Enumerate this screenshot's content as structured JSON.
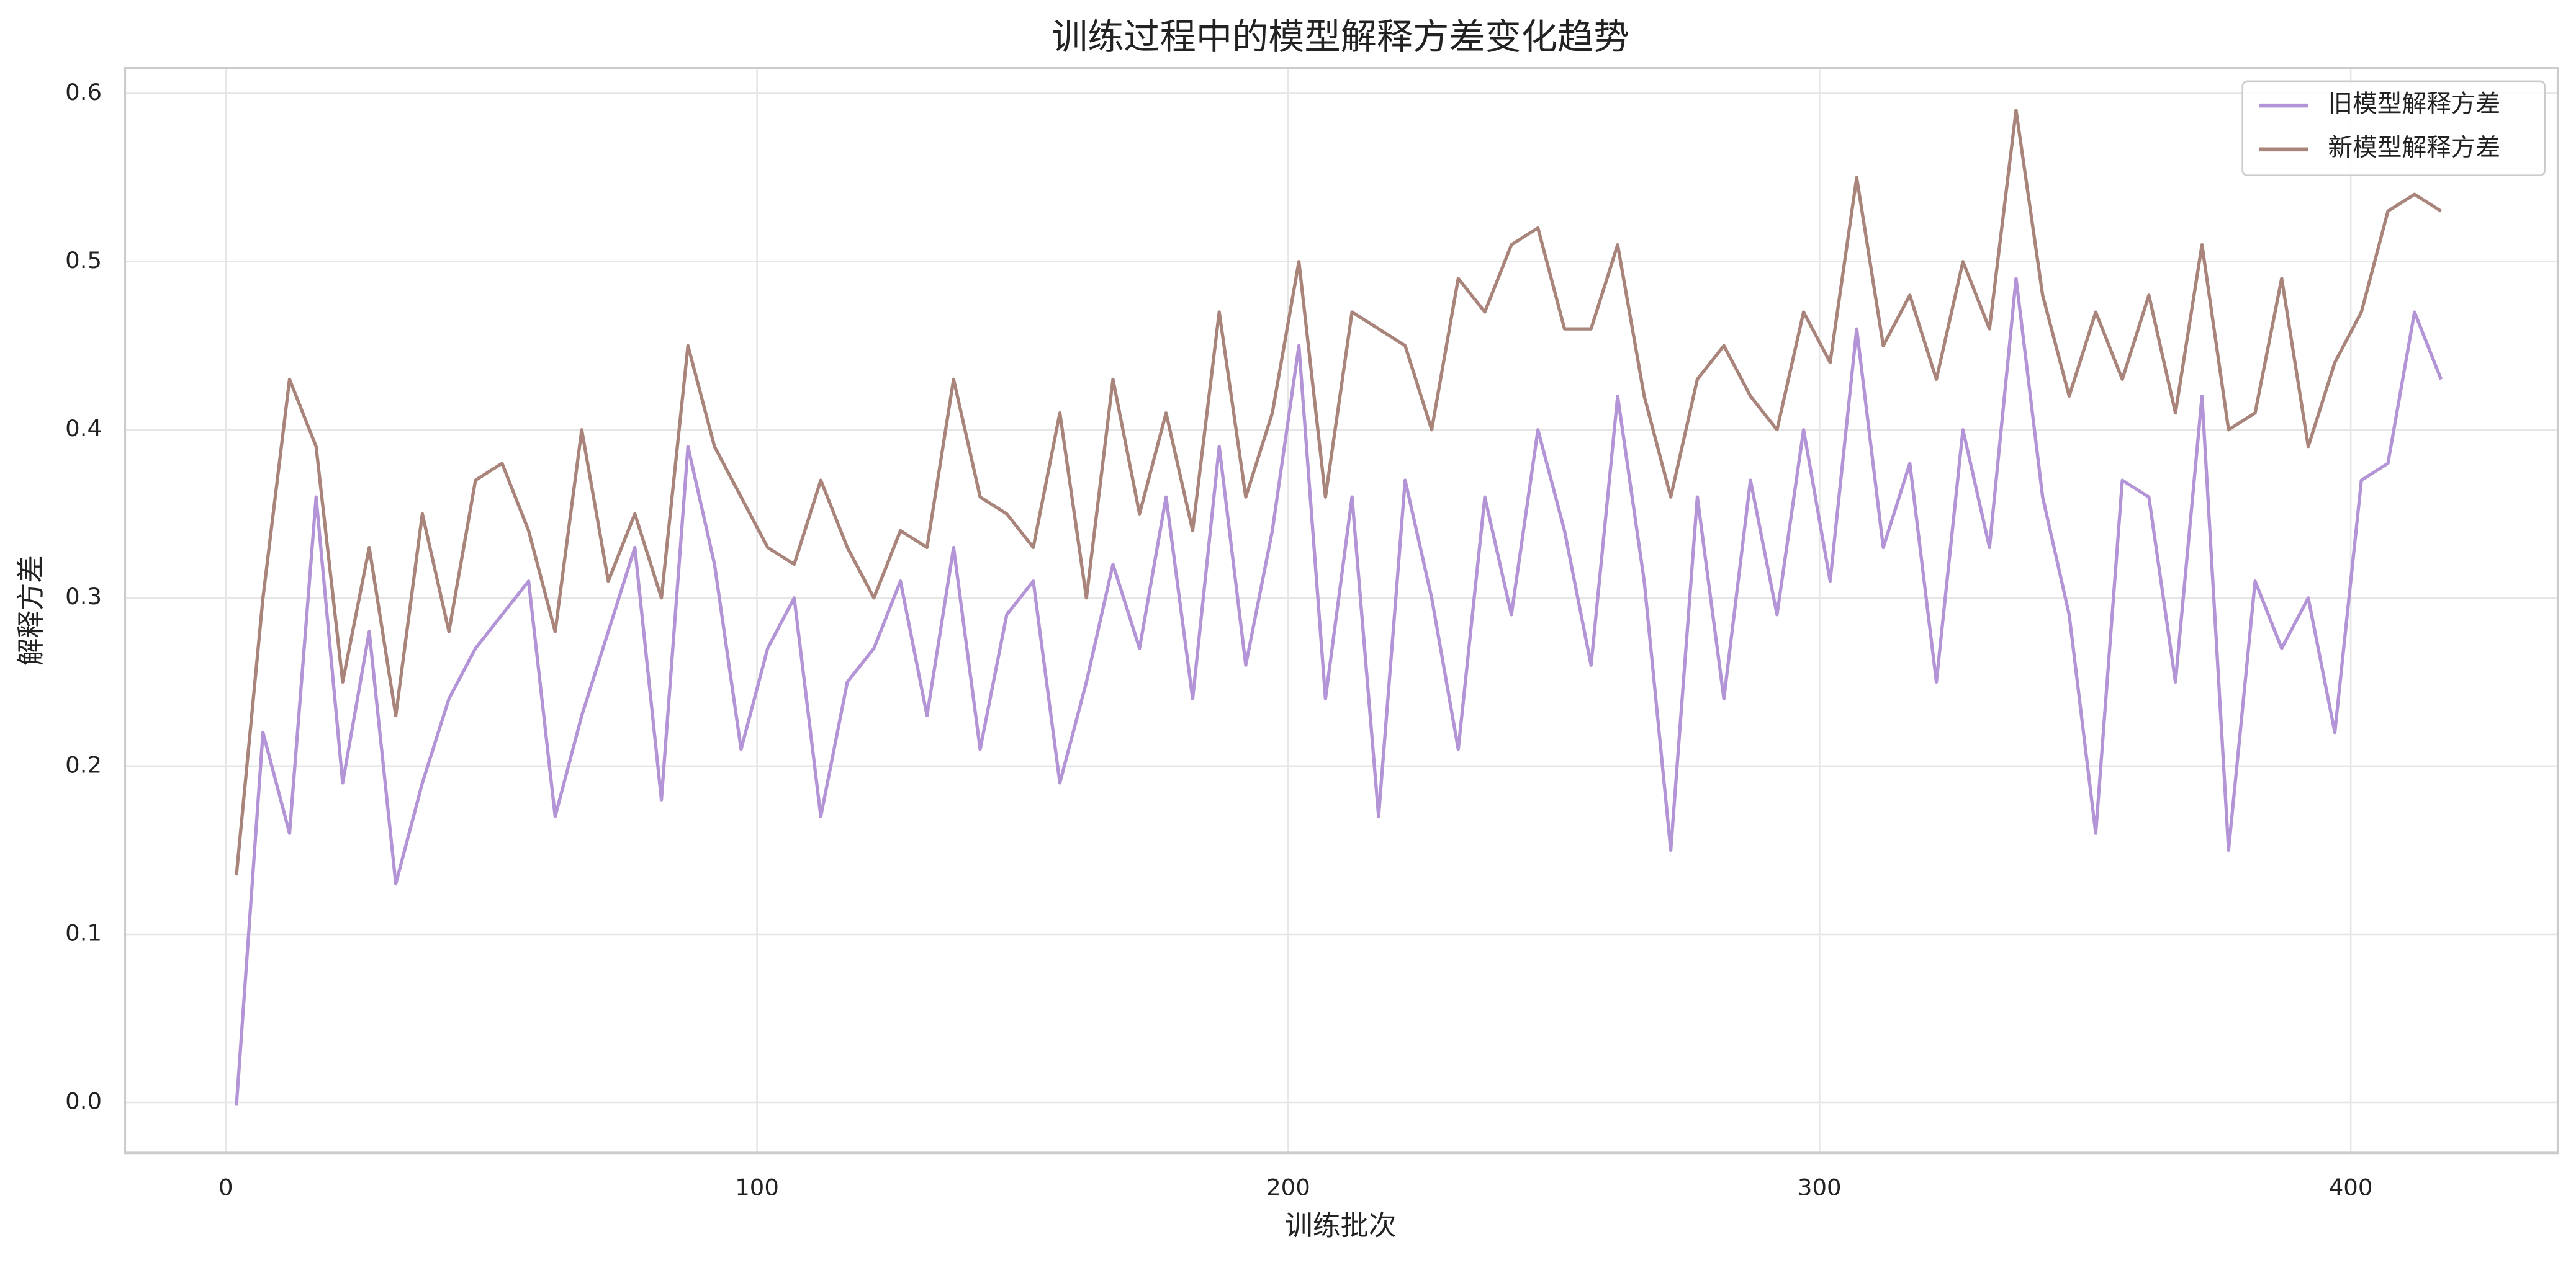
{
  "chart_data": {
    "type": "line",
    "title": "训练过程中的模型解释方差变化趋势",
    "xlabel": "训练批次",
    "ylabel": "解释方差",
    "x": [
      2,
      7,
      12,
      17,
      22,
      27,
      32,
      37,
      42,
      47,
      52,
      57,
      62,
      67,
      72,
      77,
      82,
      87,
      92,
      97,
      102,
      107,
      112,
      117,
      122,
      127,
      132,
      137,
      142,
      147,
      152,
      157,
      162,
      167,
      172,
      177,
      182,
      187,
      192,
      197,
      202,
      207,
      212,
      217,
      222,
      227,
      232,
      237,
      242,
      247,
      252,
      257,
      262,
      267,
      272,
      277,
      282,
      287,
      292,
      297,
      302,
      307,
      312,
      317,
      322,
      327,
      332,
      337,
      342,
      347,
      352,
      357,
      362,
      367,
      372,
      377,
      382,
      387,
      392,
      397,
      402,
      407,
      412,
      417
    ],
    "series": [
      {
        "name": "旧模型解释方差",
        "color": "#b394d6",
        "values": [
          -0.002,
          0.22,
          0.16,
          0.36,
          0.19,
          0.28,
          0.13,
          0.19,
          0.24,
          0.27,
          0.29,
          0.31,
          0.17,
          0.23,
          0.28,
          0.33,
          0.18,
          0.39,
          0.32,
          0.21,
          0.27,
          0.3,
          0.17,
          0.25,
          0.27,
          0.31,
          0.23,
          0.33,
          0.21,
          0.29,
          0.31,
          0.19,
          0.25,
          0.32,
          0.27,
          0.36,
          0.24,
          0.39,
          0.26,
          0.34,
          0.45,
          0.24,
          0.36,
          0.17,
          0.37,
          0.3,
          0.21,
          0.36,
          0.29,
          0.4,
          0.34,
          0.26,
          0.42,
          0.31,
          0.15,
          0.36,
          0.24,
          0.37,
          0.29,
          0.4,
          0.31,
          0.46,
          0.33,
          0.38,
          0.25,
          0.4,
          0.33,
          0.49,
          0.36,
          0.29,
          0.16,
          0.37,
          0.36,
          0.25,
          0.42,
          0.15,
          0.31,
          0.27,
          0.3,
          0.22,
          0.37,
          0.38,
          0.47,
          0.43
        ]
      },
      {
        "name": "新模型解释方差",
        "color": "#a9847b",
        "values": [
          0.135,
          0.3,
          0.43,
          0.39,
          0.25,
          0.33,
          0.23,
          0.35,
          0.28,
          0.37,
          0.38,
          0.34,
          0.28,
          0.4,
          0.31,
          0.35,
          0.3,
          0.45,
          0.39,
          0.36,
          0.33,
          0.32,
          0.37,
          0.33,
          0.3,
          0.34,
          0.33,
          0.43,
          0.36,
          0.35,
          0.33,
          0.41,
          0.3,
          0.43,
          0.35,
          0.41,
          0.34,
          0.47,
          0.36,
          0.41,
          0.5,
          0.36,
          0.47,
          0.46,
          0.45,
          0.4,
          0.49,
          0.47,
          0.51,
          0.52,
          0.46,
          0.46,
          0.51,
          0.42,
          0.36,
          0.43,
          0.45,
          0.42,
          0.4,
          0.47,
          0.44,
          0.55,
          0.45,
          0.48,
          0.43,
          0.5,
          0.46,
          0.59,
          0.48,
          0.42,
          0.47,
          0.43,
          0.48,
          0.41,
          0.51,
          0.4,
          0.41,
          0.49,
          0.39,
          0.44,
          0.47,
          0.53,
          0.54,
          0.53
        ]
      }
    ],
    "xlim": [
      -19,
      439
    ],
    "ylim": [
      -0.03,
      0.615
    ],
    "xticks": [
      0,
      100,
      200,
      300,
      400
    ],
    "yticks": [
      {
        "value": 0,
        "label": "0.0"
      },
      0.1,
      0.2,
      0.3,
      0.4,
      0.5,
      0.6
    ],
    "grid": true,
    "legend": "upper right"
  }
}
